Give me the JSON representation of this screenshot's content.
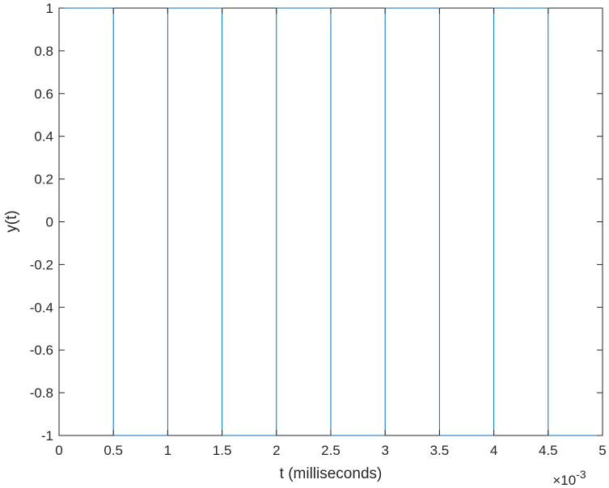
{
  "chart_data": {
    "type": "line",
    "xlabel": "t (milliseconds)",
    "ylabel": "y(t)",
    "xlim": [
      0,
      0.005
    ],
    "ylim": [
      -1,
      1
    ],
    "x_exponent_label": "×10",
    "x_exponent_power": "-3",
    "x_ticks": [
      0,
      0.0005,
      0.001,
      0.0015,
      0.002,
      0.0025,
      0.003,
      0.0035,
      0.004,
      0.0045,
      0.005
    ],
    "x_tick_labels": [
      "0",
      "0.5",
      "1",
      "1.5",
      "2",
      "2.5",
      "3",
      "3.5",
      "4",
      "4.5",
      "5"
    ],
    "y_ticks": [
      -1,
      -0.8,
      -0.6,
      -0.4,
      -0.2,
      0,
      0.2,
      0.4,
      0.6,
      0.8,
      1
    ],
    "y_tick_labels": [
      "-1",
      "-0.8",
      "-0.6",
      "-0.4",
      "-0.2",
      "0",
      "0.2",
      "0.4",
      "0.6",
      "0.8",
      "1"
    ],
    "grid": false,
    "box": true,
    "series": [
      {
        "color": "#0072BD",
        "x": [
          0,
          0.0005,
          0.0005,
          0.001,
          0.001,
          0.0015,
          0.0015,
          0.002,
          0.002,
          0.0025,
          0.0025,
          0.003,
          0.003,
          0.0035,
          0.0035,
          0.004,
          0.004,
          0.0045,
          0.0045,
          0.005
        ],
        "y": [
          1,
          1,
          -1,
          -1,
          1,
          1,
          -1,
          -1,
          1,
          1,
          -1,
          -1,
          1,
          1,
          -1,
          -1,
          1,
          1,
          -1,
          -1
        ]
      }
    ]
  }
}
